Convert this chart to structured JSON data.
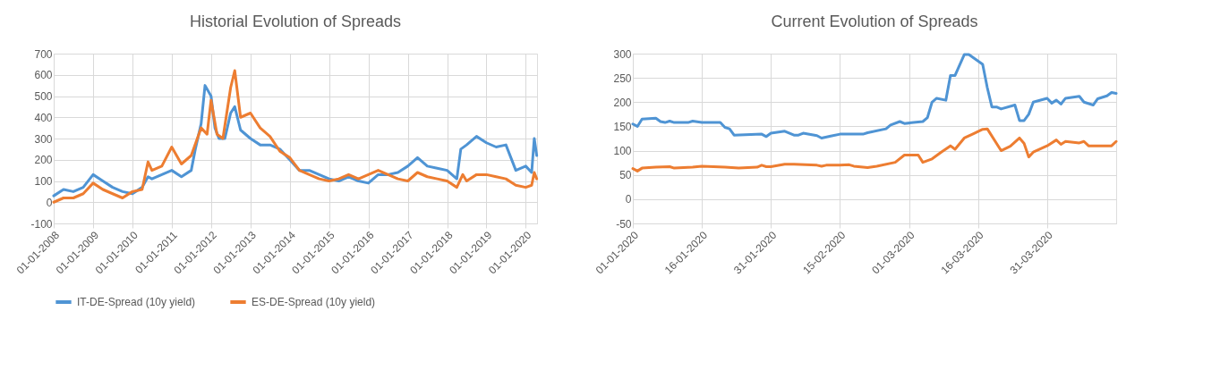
{
  "chart_data": [
    {
      "type": "line",
      "title": "Historial Evolution of Spreads",
      "xlim": [
        "2008-01-01",
        "2020-04-15"
      ],
      "ylim": [
        -100,
        700
      ],
      "yticks": [
        -100,
        0,
        100,
        200,
        300,
        400,
        500,
        600,
        700
      ],
      "xticks": [
        {
          "value": "2008-01-01",
          "label": "01-01-2008"
        },
        {
          "value": "2009-01-01",
          "label": "01-01-2009"
        },
        {
          "value": "2010-01-01",
          "label": "01-01-2010"
        },
        {
          "value": "2011-01-01",
          "label": "01-01-2011"
        },
        {
          "value": "2012-01-01",
          "label": "01-01-2012"
        },
        {
          "value": "2013-01-01",
          "label": "01-01-2013"
        },
        {
          "value": "2014-01-01",
          "label": "01-01-2014"
        },
        {
          "value": "2015-01-01",
          "label": "01-01-2015"
        },
        {
          "value": "2016-01-01",
          "label": "01-01-2016"
        },
        {
          "value": "2017-01-01",
          "label": "01-01-2017"
        },
        {
          "value": "2018-01-01",
          "label": "01-01-2018"
        },
        {
          "value": "2019-01-01",
          "label": "01-01-2019"
        },
        {
          "value": "2020-01-01",
          "label": "01-01-2020"
        }
      ],
      "grid": true,
      "legend": "bottom",
      "marker": "none",
      "line_style": "solid",
      "series": [
        {
          "name": "IT-DE-Spread (10y yield)",
          "color": "#4f94d4",
          "x": [
            "2008-01-01",
            "2008-04-01",
            "2008-07-01",
            "2008-10-01",
            "2009-01-01",
            "2009-04-01",
            "2009-07-01",
            "2009-10-01",
            "2010-01-01",
            "2010-04-01",
            "2010-05-26",
            "2010-07-01",
            "2010-10-01",
            "2011-01-01",
            "2011-04-01",
            "2011-07-01",
            "2011-08-08",
            "2011-10-01",
            "2011-11-06",
            "2012-01-01",
            "2012-02-06",
            "2012-03-15",
            "2012-05-08",
            "2012-07-01",
            "2012-08-08",
            "2012-10-01",
            "2013-01-01",
            "2013-04-01",
            "2013-07-01",
            "2013-10-01",
            "2014-01-01",
            "2014-04-01",
            "2014-07-01",
            "2014-10-01",
            "2015-01-01",
            "2015-04-01",
            "2015-07-01",
            "2015-10-01",
            "2016-01-01",
            "2016-04-01",
            "2016-07-01",
            "2016-10-01",
            "2017-01-01",
            "2017-04-01",
            "2017-07-01",
            "2017-10-01",
            "2018-01-01",
            "2018-04-01",
            "2018-05-08",
            "2018-07-01",
            "2018-10-01",
            "2019-01-01",
            "2019-04-01",
            "2019-07-01",
            "2019-10-01",
            "2020-01-01",
            "2020-02-25",
            "2020-03-20",
            "2020-04-12"
          ],
          "values": [
            30,
            60,
            50,
            70,
            130,
            100,
            70,
            50,
            40,
            70,
            120,
            110,
            130,
            150,
            120,
            150,
            250,
            370,
            550,
            500,
            350,
            300,
            300,
            420,
            450,
            340,
            300,
            270,
            270,
            250,
            200,
            150,
            150,
            130,
            110,
            100,
            120,
            100,
            90,
            130,
            130,
            140,
            170,
            210,
            170,
            160,
            150,
            110,
            250,
            270,
            310,
            280,
            260,
            270,
            150,
            170,
            140,
            300,
            220
          ]
        },
        {
          "name": "ES-DE-Spread (10y yield)",
          "color": "#ed7d31",
          "x": [
            "2008-01-01",
            "2008-04-01",
            "2008-07-01",
            "2008-10-01",
            "2009-01-01",
            "2009-04-01",
            "2009-07-01",
            "2009-10-01",
            "2010-01-01",
            "2010-04-01",
            "2010-05-26",
            "2010-07-01",
            "2010-10-01",
            "2011-01-01",
            "2011-04-01",
            "2011-07-01",
            "2011-10-01",
            "2011-11-25",
            "2012-01-01",
            "2012-02-25",
            "2012-04-20",
            "2012-07-01",
            "2012-08-08",
            "2012-10-01",
            "2013-01-01",
            "2013-04-01",
            "2013-07-01",
            "2013-10-01",
            "2014-01-01",
            "2014-04-01",
            "2014-07-01",
            "2014-10-01",
            "2015-01-01",
            "2015-04-01",
            "2015-07-01",
            "2015-10-01",
            "2016-01-01",
            "2016-04-01",
            "2016-07-01",
            "2016-10-01",
            "2017-01-01",
            "2017-04-01",
            "2017-07-01",
            "2017-10-01",
            "2018-01-01",
            "2018-04-01",
            "2018-05-26",
            "2018-07-01",
            "2018-10-01",
            "2019-01-01",
            "2019-04-01",
            "2019-07-01",
            "2019-10-01",
            "2020-01-01",
            "2020-02-25",
            "2020-03-20",
            "2020-04-12"
          ],
          "values": [
            0,
            20,
            20,
            40,
            90,
            60,
            40,
            20,
            50,
            60,
            190,
            150,
            170,
            260,
            180,
            220,
            350,
            320,
            480,
            320,
            300,
            540,
            620,
            400,
            420,
            350,
            310,
            240,
            210,
            150,
            130,
            110,
            100,
            110,
            130,
            110,
            130,
            150,
            130,
            110,
            100,
            140,
            120,
            110,
            100,
            70,
            130,
            100,
            130,
            130,
            120,
            110,
            80,
            70,
            80,
            140,
            110
          ]
        }
      ]
    },
    {
      "type": "line",
      "title": "Current Evolution of Spreads",
      "xlim": [
        "2020-01-01",
        "2020-04-15"
      ],
      "ylim": [
        -50,
        300
      ],
      "yticks": [
        -50,
        0,
        50,
        100,
        150,
        200,
        250,
        300
      ],
      "xticks": [
        {
          "value": "2020-01-01",
          "label": "01-01-2020"
        },
        {
          "value": "2020-01-16",
          "label": "16-01-2020"
        },
        {
          "value": "2020-01-31",
          "label": "31-01-2020"
        },
        {
          "value": "2020-02-15",
          "label": "15-02-2020"
        },
        {
          "value": "2020-03-01",
          "label": "01-03-2020"
        },
        {
          "value": "2020-03-16",
          "label": "16-03-2020"
        },
        {
          "value": "2020-03-31",
          "label": "31-03-2020"
        }
      ],
      "grid": true,
      "legend": "bottom",
      "marker": "none",
      "line_style": "solid",
      "series": [
        {
          "name": "IT-DE-Spread (10y yield)",
          "color": "#4f94d4",
          "x": [
            "2020-01-01",
            "2020-01-02",
            "2020-01-03",
            "2020-01-06",
            "2020-01-07",
            "2020-01-08",
            "2020-01-09",
            "2020-01-10",
            "2020-01-13",
            "2020-01-14",
            "2020-01-16",
            "2020-01-20",
            "2020-01-21",
            "2020-01-22",
            "2020-01-23",
            "2020-01-29",
            "2020-01-30",
            "2020-01-31",
            "2020-02-03",
            "2020-02-05",
            "2020-02-06",
            "2020-02-07",
            "2020-02-10",
            "2020-02-11",
            "2020-02-13",
            "2020-02-15",
            "2020-02-20",
            "2020-02-21",
            "2020-02-25",
            "2020-02-26",
            "2020-02-28",
            "2020-02-29",
            "2020-03-02",
            "2020-03-04",
            "2020-03-05",
            "2020-03-06",
            "2020-03-07",
            "2020-03-09",
            "2020-03-10",
            "2020-03-11",
            "2020-03-13",
            "2020-03-14",
            "2020-03-17",
            "2020-03-18",
            "2020-03-19",
            "2020-03-20",
            "2020-03-21",
            "2020-03-24",
            "2020-03-25",
            "2020-03-26",
            "2020-03-27",
            "2020-03-28",
            "2020-03-31",
            "2020-04-01",
            "2020-04-02",
            "2020-04-03",
            "2020-04-04",
            "2020-04-07",
            "2020-04-08",
            "2020-04-10",
            "2020-04-11",
            "2020-04-13",
            "2020-04-14",
            "2020-04-15"
          ],
          "values": [
            155,
            150,
            165,
            167,
            160,
            158,
            161,
            158,
            158,
            161,
            158,
            158,
            148,
            145,
            132,
            134,
            129,
            136,
            140,
            132,
            132,
            136,
            131,
            126,
            130,
            134,
            134,
            137,
            145,
            153,
            160,
            156,
            158,
            160,
            168,
            200,
            208,
            204,
            255,
            255,
            298,
            298,
            278,
            230,
            190,
            190,
            186,
            194,
            162,
            162,
            175,
            200,
            208,
            198,
            204,
            196,
            208,
            212,
            200,
            194,
            207,
            213,
            220,
            218
          ]
        },
        {
          "name": "ES-DE-Spread (10y yield)",
          "color": "#ed7d31",
          "x": [
            "2020-01-01",
            "2020-01-02",
            "2020-01-03",
            "2020-01-06",
            "2020-01-09",
            "2020-01-10",
            "2020-01-12",
            "2020-01-14",
            "2020-01-16",
            "2020-01-21",
            "2020-01-24",
            "2020-01-28",
            "2020-01-29",
            "2020-01-30",
            "2020-01-31",
            "2020-02-03",
            "2020-02-05",
            "2020-02-10",
            "2020-02-11",
            "2020-02-12",
            "2020-02-15",
            "2020-02-17",
            "2020-02-18",
            "2020-02-21",
            "2020-02-23",
            "2020-02-27",
            "2020-02-29",
            "2020-03-03",
            "2020-03-04",
            "2020-03-06",
            "2020-03-08",
            "2020-03-10",
            "2020-03-11",
            "2020-03-13",
            "2020-03-15",
            "2020-03-17",
            "2020-03-18",
            "2020-03-21",
            "2020-03-23",
            "2020-03-25",
            "2020-03-26",
            "2020-03-27",
            "2020-03-28",
            "2020-03-31",
            "2020-04-02",
            "2020-04-03",
            "2020-04-04",
            "2020-04-07",
            "2020-04-08",
            "2020-04-09",
            "2020-04-13",
            "2020-04-14",
            "2020-04-15"
          ],
          "values": [
            63,
            58,
            64,
            66,
            67,
            64,
            65,
            66,
            68,
            66,
            64,
            66,
            70,
            67,
            67,
            72,
            72,
            70,
            68,
            70,
            70,
            71,
            68,
            65,
            68,
            76,
            91,
            91,
            76,
            83,
            97,
            110,
            103,
            126,
            135,
            144,
            145,
            100,
            109,
            126,
            115,
            87,
            97,
            110,
            122,
            113,
            119,
            116,
            119,
            110,
            110,
            110,
            119
          ]
        }
      ]
    }
  ]
}
